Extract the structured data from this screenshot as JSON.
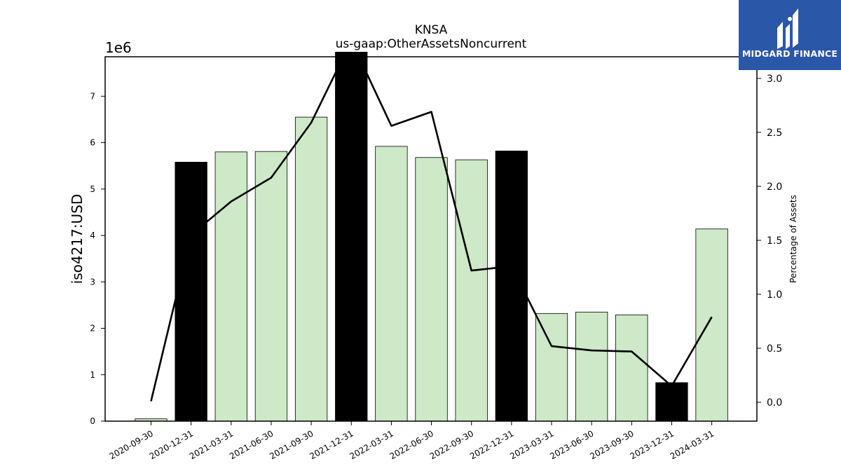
{
  "logo": {
    "text": "MIDGARD FINANCE",
    "background": "#2b57a8"
  },
  "chart_data": {
    "type": "bar",
    "title": "KNSA",
    "subtitle": "us-gaap:OtherAssetsNoncurrent",
    "ylabel": "iso4217:USD",
    "y_multiplier_label": "1e6",
    "y2label": "Percentage of Assets",
    "categories": [
      "2020-09-30",
      "2020-12-31",
      "2021-03-31",
      "2021-06-30",
      "2021-09-30",
      "2021-12-31",
      "2022-03-31",
      "2022-06-30",
      "2022-09-30",
      "2022-12-31",
      "2023-03-31",
      "2023-06-30",
      "2023-09-30",
      "2023-12-31",
      "2024-03-31"
    ],
    "series": [
      {
        "type": "bar",
        "axis": "left",
        "values": [
          0.05,
          5.58,
          5.8,
          5.81,
          6.55,
          7.95,
          5.92,
          5.68,
          5.63,
          5.82,
          2.32,
          2.35,
          2.29,
          0.83,
          4.14
        ],
        "highlight": [
          false,
          true,
          false,
          false,
          false,
          true,
          false,
          false,
          false,
          true,
          false,
          false,
          false,
          true,
          false
        ]
      },
      {
        "type": "line",
        "axis": "right",
        "values": [
          0.01,
          1.55,
          1.86,
          2.08,
          2.59,
          3.35,
          2.56,
          2.69,
          1.22,
          1.26,
          0.52,
          0.48,
          0.47,
          0.15,
          0.79
        ]
      }
    ],
    "ylim": [
      0,
      7.85
    ],
    "y_ticks": [
      0,
      1,
      2,
      3,
      4,
      5,
      6,
      7
    ],
    "y2lim": [
      -0.175,
      3.2
    ],
    "y2_ticks": [
      "0.0",
      "0.5",
      "1.0",
      "1.5",
      "2.0",
      "2.5",
      "3.0"
    ],
    "colors": {
      "bar": "#cde9c7",
      "bar_highlight": "#000000",
      "line": "#000000"
    },
    "grid": false,
    "legend": "none"
  }
}
